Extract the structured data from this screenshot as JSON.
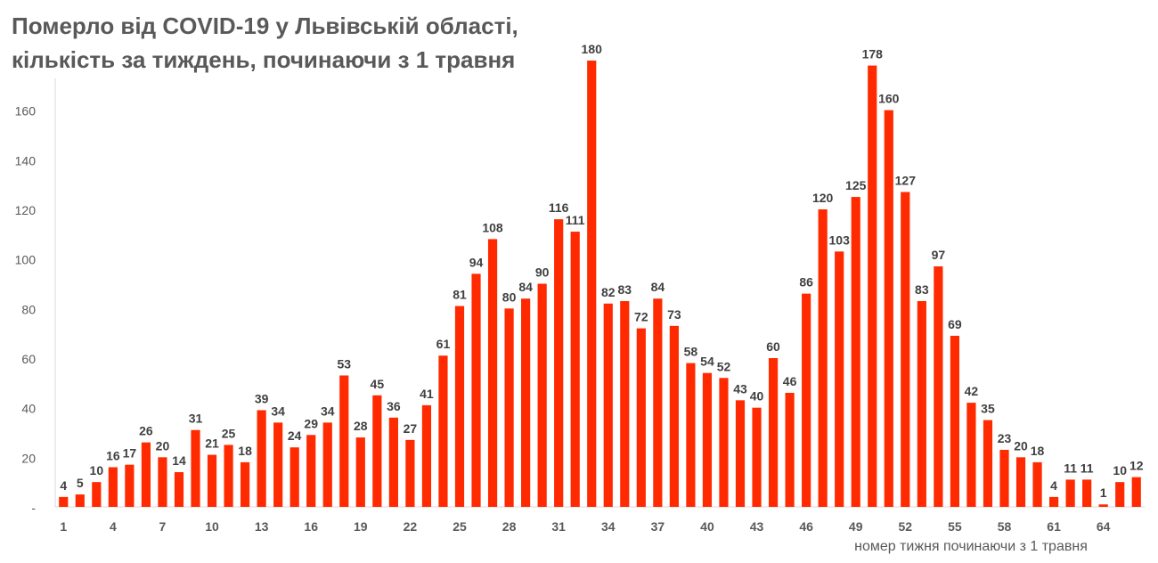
{
  "chart_data": {
    "type": "bar",
    "title_line1": "Померло від COVID-19 у Львівській області,",
    "title_line2": "кількість за тиждень, починаючи з 1 травня",
    "xlabel": "номер тижня починаючи з 1 травня",
    "ylabel": "",
    "ylim": [
      0,
      180
    ],
    "yticks": [
      0,
      20,
      40,
      60,
      80,
      100,
      120,
      140,
      160
    ],
    "ytick_labels": [
      "-",
      "20",
      "40",
      "60",
      "80",
      "100",
      "120",
      "140",
      "160"
    ],
    "xtick_labels": [
      "1",
      "4",
      "7",
      "10",
      "13",
      "16",
      "19",
      "22",
      "25",
      "28",
      "31",
      "34",
      "37",
      "40",
      "43",
      "46",
      "49",
      "52",
      "55",
      "58",
      "61",
      "64"
    ],
    "bar_color": "#ff2a00",
    "categories": [
      1,
      2,
      3,
      4,
      5,
      6,
      7,
      8,
      9,
      10,
      11,
      12,
      13,
      14,
      15,
      16,
      17,
      18,
      19,
      20,
      21,
      22,
      23,
      24,
      25,
      26,
      27,
      28,
      29,
      30,
      31,
      32,
      33,
      34,
      35,
      36,
      37,
      38,
      39,
      40,
      41,
      42,
      43,
      44,
      45,
      46,
      47,
      48,
      49,
      50,
      51,
      52,
      53,
      54,
      55,
      56,
      57,
      58,
      59,
      60,
      61,
      62,
      63,
      64,
      65,
      66
    ],
    "values": [
      4,
      5,
      10,
      16,
      17,
      26,
      20,
      14,
      31,
      21,
      25,
      18,
      39,
      34,
      24,
      29,
      34,
      53,
      28,
      45,
      36,
      27,
      41,
      61,
      81,
      94,
      108,
      80,
      84,
      90,
      116,
      111,
      180,
      82,
      83,
      72,
      84,
      73,
      58,
      54,
      52,
      43,
      40,
      60,
      46,
      86,
      120,
      103,
      125,
      178,
      160,
      127,
      83,
      97,
      69,
      42,
      35,
      23,
      20,
      18,
      4,
      11,
      11,
      1,
      10,
      12
    ],
    "data_labels": [
      "4",
      "5",
      "10",
      "16",
      "17",
      "26",
      "20",
      "14",
      "31",
      "21",
      "25",
      "18",
      "39",
      "34",
      "24",
      "29",
      "34",
      "53",
      "28",
      "45",
      "36",
      "27",
      "41",
      "61",
      "81",
      "94",
      "108",
      "80",
      "84",
      "90",
      "116",
      "111",
      "180",
      "82",
      "83",
      "72",
      "84",
      "73",
      "58",
      "54",
      "52",
      "43",
      "40",
      "60",
      "46",
      "86",
      "120",
      "103",
      "125",
      "178",
      "160",
      "127",
      "83",
      "97",
      "69",
      "42",
      "35",
      "23",
      "20",
      "18",
      "4",
      "11",
      "11",
      "1",
      "10",
      "12"
    ],
    "grid": false,
    "legend": "none"
  }
}
